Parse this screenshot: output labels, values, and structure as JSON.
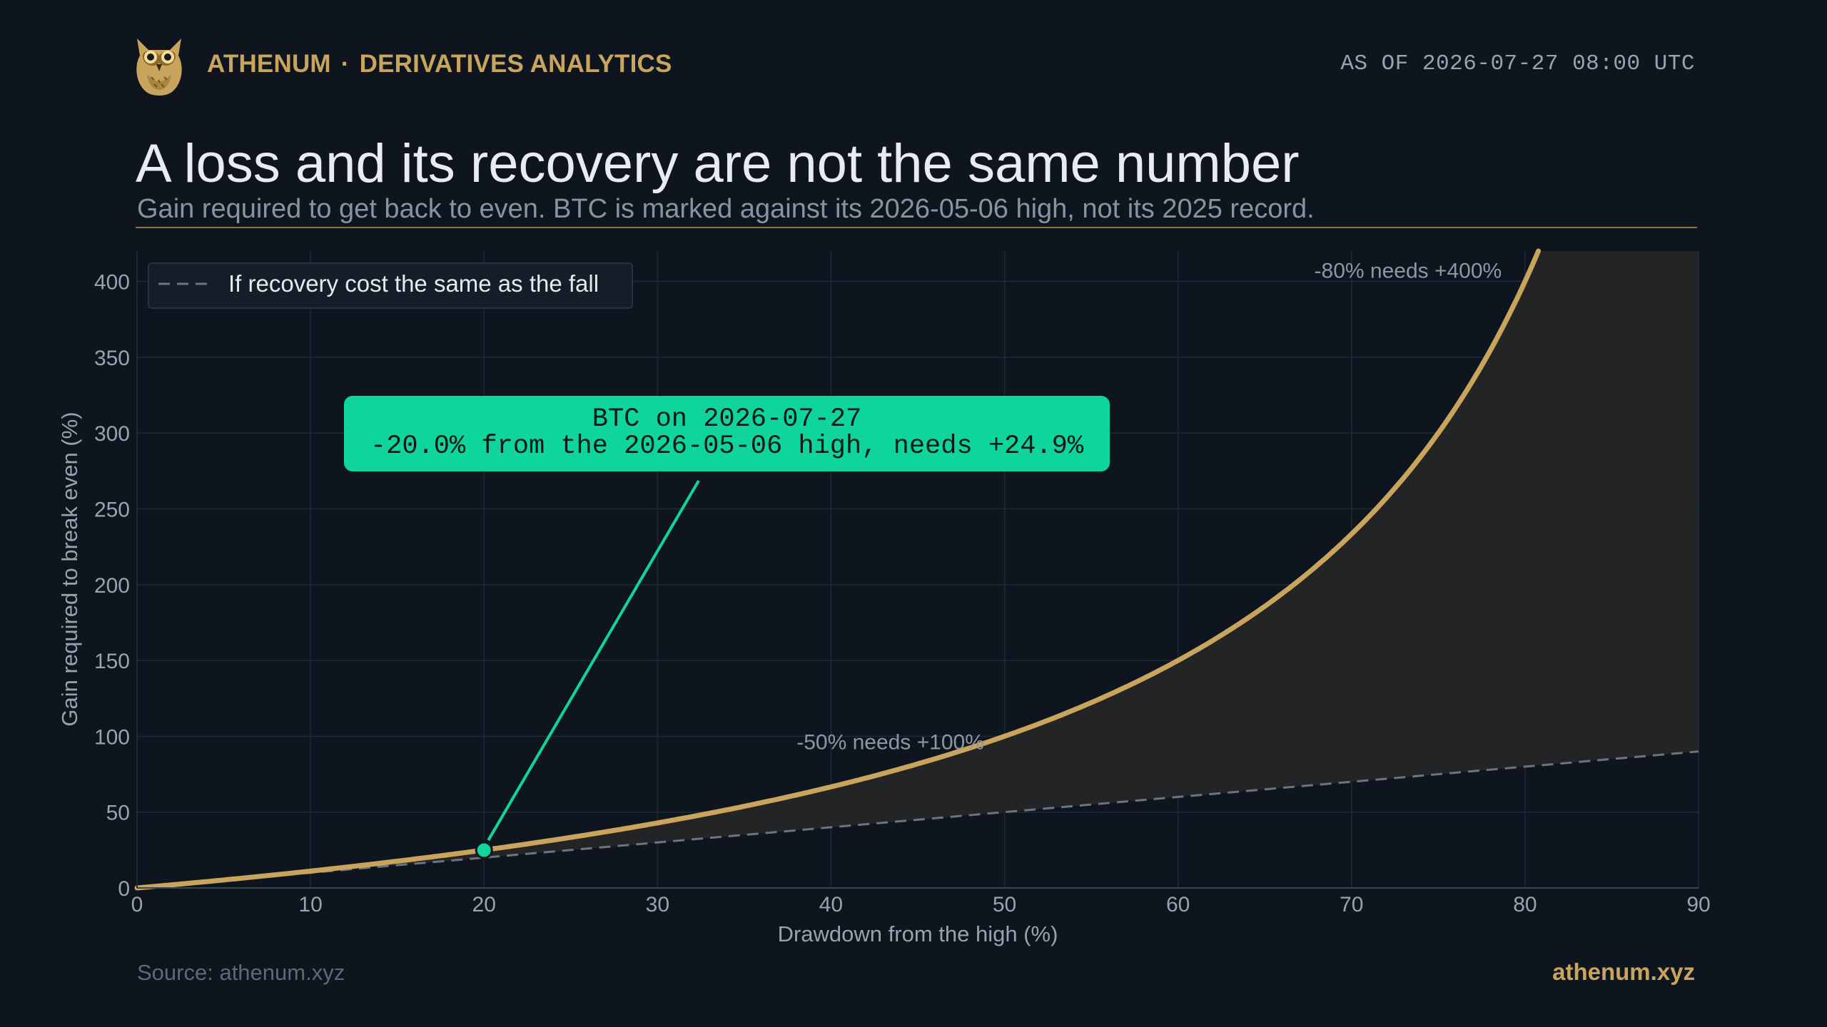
{
  "header": {
    "brand_name": "ATHENUM",
    "brand_separator": "·",
    "brand_section": "DERIVATIVES ANALYTICS",
    "as_of": "AS OF 2026-07-27 08:00 UTC",
    "logo_icon": "owl-logo-icon"
  },
  "title": "A loss and its recovery are not the same number",
  "subtitle": "Gain required to get back to even. BTC is marked against its 2026-05-06 high, not its 2025 record.",
  "footer": {
    "source": "Source: athenum.xyz",
    "site": "athenum.xyz"
  },
  "colors": {
    "background": "#0e151f",
    "accent_gold": "#c9a45c",
    "highlight_green": "#0fd49c",
    "reference_line": "#6b7480",
    "shade": "#262626"
  },
  "chart_data": {
    "type": "line",
    "xlabel": "Drawdown from the high (%)",
    "ylabel": "Gain required to break even (%)",
    "xlim": [
      0,
      90
    ],
    "ylim": [
      0,
      420
    ],
    "x_ticks": [
      0,
      10,
      20,
      30,
      40,
      50,
      60,
      70,
      80,
      90
    ],
    "y_ticks": [
      0,
      50,
      100,
      150,
      200,
      250,
      300,
      350,
      400
    ],
    "grid": true,
    "legend_position": "top-left",
    "series": [
      {
        "kind": "curve",
        "formula": "100*d/(100-d)",
        "x": [
          0,
          5,
          10,
          15,
          20,
          25,
          30,
          35,
          40,
          45,
          50,
          55,
          60,
          65,
          70,
          75,
          80,
          80.77
        ],
        "y": [
          0,
          5.3,
          11.1,
          17.6,
          25.0,
          33.3,
          42.9,
          53.8,
          66.7,
          81.8,
          100.0,
          122.2,
          150.0,
          185.7,
          233.3,
          300.0,
          400.0,
          420.0
        ]
      },
      {
        "kind": "reference",
        "name": "If recovery cost the same as the fall",
        "x": [
          0,
          90
        ],
        "y": [
          0,
          90
        ]
      }
    ],
    "annotations": [
      {
        "text": "-50% needs +100%",
        "x": 50,
        "y": 100
      },
      {
        "text": "-80% needs +400%",
        "x": 80,
        "y": 400
      }
    ],
    "highlight": {
      "x": 20.0,
      "y": 24.9,
      "line1": "BTC on 2026-07-27",
      "line2": "-20.0% from the 2026-05-06 high, needs +24.9%"
    }
  }
}
